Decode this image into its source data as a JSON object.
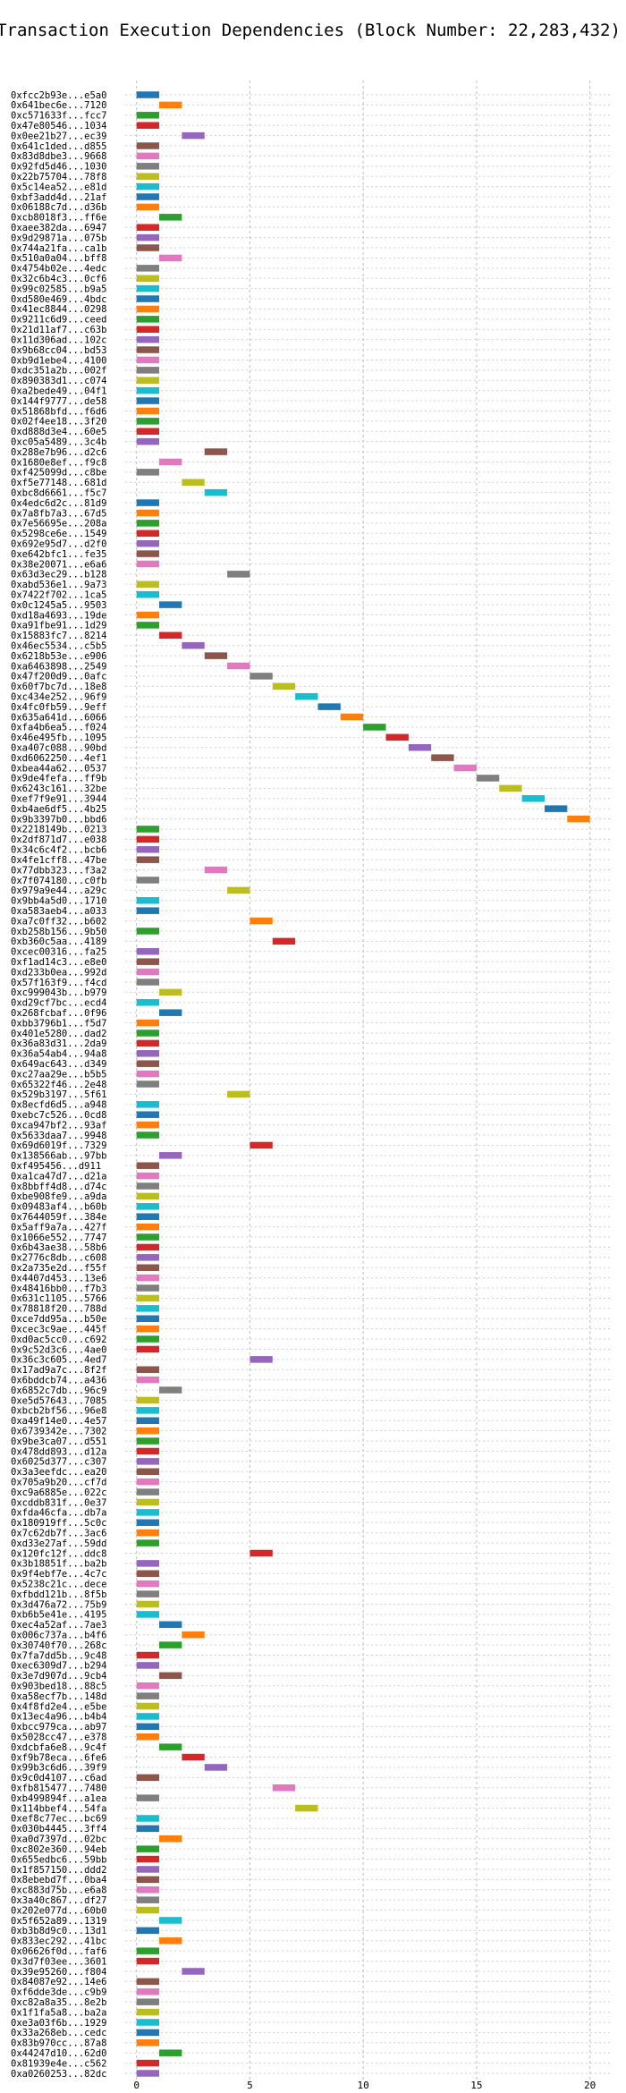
{
  "chart_data": {
    "type": "gantt",
    "title": "Transaction Execution Dependencies (Block Number: 22,283,432)",
    "xlim": [
      -0.5,
      21
    ],
    "xticks": [
      0,
      5,
      10,
      15,
      20
    ],
    "grid": true,
    "colors": [
      "#1f77b4",
      "#ff7f0e",
      "#2ca02c",
      "#d62728",
      "#9467bd",
      "#8c564b",
      "#e377c2",
      "#7f7f7f",
      "#bcbd22",
      "#17becf"
    ],
    "transactions": [
      {
        "label": "0xfcc2b93e...e5a0",
        "start": 0
      },
      {
        "label": "0x641bec6e...7120",
        "start": 1
      },
      {
        "label": "0xc571633f...fcc7",
        "start": 0
      },
      {
        "label": "0x47e80546...1034",
        "start": 0
      },
      {
        "label": "0x0ee21b27...ec39",
        "start": 2
      },
      {
        "label": "0x641c1ded...d855",
        "start": 0
      },
      {
        "label": "0x83d8dbe3...9668",
        "start": 0
      },
      {
        "label": "0x92fd5d46...1030",
        "start": 0
      },
      {
        "label": "0x22b75704...78f8",
        "start": 0
      },
      {
        "label": "0x5c14ea52...e81d",
        "start": 0
      },
      {
        "label": "0xbf3add4d...21af",
        "start": 0
      },
      {
        "label": "0x06188c7d...d36b",
        "start": 0
      },
      {
        "label": "0xcb8018f3...ff6e",
        "start": 1
      },
      {
        "label": "0xaee382da...6947",
        "start": 0
      },
      {
        "label": "0x9d29871a...075b",
        "start": 0
      },
      {
        "label": "0x744a21fa...ca1b",
        "start": 0
      },
      {
        "label": "0x510a0a04...bff8",
        "start": 1
      },
      {
        "label": "0x4754b02e...4edc",
        "start": 0
      },
      {
        "label": "0x32c6b4c3...0cf6",
        "start": 0
      },
      {
        "label": "0x99c02585...b9a5",
        "start": 0
      },
      {
        "label": "0xd580e469...4bdc",
        "start": 0
      },
      {
        "label": "0x41ec8844...0298",
        "start": 0
      },
      {
        "label": "0x9211c6d9...ceed",
        "start": 0
      },
      {
        "label": "0x21d11af7...c63b",
        "start": 0
      },
      {
        "label": "0x11d306ad...102c",
        "start": 0
      },
      {
        "label": "0x9b68cc04...bd53",
        "start": 0
      },
      {
        "label": "0xb9d1ebe4...4100",
        "start": 0
      },
      {
        "label": "0xdc351a2b...002f",
        "start": 0
      },
      {
        "label": "0x890383d1...c074",
        "start": 0
      },
      {
        "label": "0xa2bede49...04f1",
        "start": 0
      },
      {
        "label": "0x144f9777...de58",
        "start": 0
      },
      {
        "label": "0x51868bfd...f6d6",
        "start": 0
      },
      {
        "label": "0x02f4ee18...3f20",
        "start": 0
      },
      {
        "label": "0xd888d3e4...60e5",
        "start": 0
      },
      {
        "label": "0xc05a5489...3c4b",
        "start": 0
      },
      {
        "label": "0x288e7b96...d2c6",
        "start": 3
      },
      {
        "label": "0x1680e8ef...f9c8",
        "start": 1
      },
      {
        "label": "0xf425099d...c8be",
        "start": 0
      },
      {
        "label": "0xf5e77148...681d",
        "start": 2
      },
      {
        "label": "0xbc8d6661...f5c7",
        "start": 3
      },
      {
        "label": "0x4edc6d2c...81d9",
        "start": 0
      },
      {
        "label": "0x7a8fb7a3...67d5",
        "start": 0
      },
      {
        "label": "0x7e56695e...208a",
        "start": 0
      },
      {
        "label": "0x5298ce6e...1549",
        "start": 0
      },
      {
        "label": "0x692e95d7...d2f0",
        "start": 0
      },
      {
        "label": "0xe642bfc1...fe35",
        "start": 0
      },
      {
        "label": "0x38e20071...e6a6",
        "start": 0
      },
      {
        "label": "0x63d3ec29...b128",
        "start": 4
      },
      {
        "label": "0xabd536e1...9a73",
        "start": 0
      },
      {
        "label": "0x7422f702...1ca5",
        "start": 0
      },
      {
        "label": "0x0c1245a5...9503",
        "start": 1
      },
      {
        "label": "0xd18a4693...19de",
        "start": 0
      },
      {
        "label": "0xa91fbe91...1d29",
        "start": 0
      },
      {
        "label": "0x15883fc7...8214",
        "start": 1
      },
      {
        "label": "0x46ec5534...c5b5",
        "start": 2
      },
      {
        "label": "0x6218b53e...e906",
        "start": 3
      },
      {
        "label": "0xa6463898...2549",
        "start": 4
      },
      {
        "label": "0x47f200d9...0afc",
        "start": 5
      },
      {
        "label": "0x60f7bc7d...18e8",
        "start": 6
      },
      {
        "label": "0xc434e252...96f9",
        "start": 7
      },
      {
        "label": "0x4fc0fb59...9eff",
        "start": 8
      },
      {
        "label": "0x635a641d...6066",
        "start": 9
      },
      {
        "label": "0xfa4b6ea5...f024",
        "start": 10
      },
      {
        "label": "0x46e495fb...1095",
        "start": 11
      },
      {
        "label": "0xa407c088...90bd",
        "start": 12
      },
      {
        "label": "0xd6062250...4ef1",
        "start": 13
      },
      {
        "label": "0xbea44a62...0537",
        "start": 14
      },
      {
        "label": "0x9de4fefa...ff9b",
        "start": 15
      },
      {
        "label": "0x6243c161...32be",
        "start": 16
      },
      {
        "label": "0xef7f9e91...3944",
        "start": 17
      },
      {
        "label": "0xb4ae6df5...4b25",
        "start": 18
      },
      {
        "label": "0x9b3397b0...bbd6",
        "start": 19
      },
      {
        "label": "0x2218149b...0213",
        "start": 0
      },
      {
        "label": "0x2df871d7...e038",
        "start": 0
      },
      {
        "label": "0x34c6c4f2...bcb6",
        "start": 0
      },
      {
        "label": "0x4fe1cff8...47be",
        "start": 0
      },
      {
        "label": "0x77dbb323...f3a2",
        "start": 3
      },
      {
        "label": "0x7f074180...c0fb",
        "start": 0
      },
      {
        "label": "0x979a9e44...a29c",
        "start": 4
      },
      {
        "label": "0x9bb4a5d0...1710",
        "start": 0
      },
      {
        "label": "0xa583aeb4...a033",
        "start": 0
      },
      {
        "label": "0xa7c0ff32...b602",
        "start": 5
      },
      {
        "label": "0xb258b156...9b50",
        "start": 0
      },
      {
        "label": "0xb360c5aa...4189",
        "start": 6
      },
      {
        "label": "0xcec00316...fa25",
        "start": 0
      },
      {
        "label": "0xf1ad14c3...e8e0",
        "start": 0
      },
      {
        "label": "0xd233b0ea...992d",
        "start": 0
      },
      {
        "label": "0x57f163f9...f4cd",
        "start": 0
      },
      {
        "label": "0xc999043b...b979",
        "start": 1
      },
      {
        "label": "0xd29cf7bc...ecd4",
        "start": 0
      },
      {
        "label": "0x268fcbaf...0f96",
        "start": 1
      },
      {
        "label": "0xbb3796b1...f5d7",
        "start": 0
      },
      {
        "label": "0x401e5280...dad2",
        "start": 0
      },
      {
        "label": "0x36a83d31...2da9",
        "start": 0
      },
      {
        "label": "0x36a54ab4...94a8",
        "start": 0
      },
      {
        "label": "0x649ac643...d349",
        "start": 0
      },
      {
        "label": "0xc27aa29e...b5b5",
        "start": 0
      },
      {
        "label": "0x65322f46...2e48",
        "start": 0
      },
      {
        "label": "0x529b3197...5f61",
        "start": 4
      },
      {
        "label": "0x8ecfd6d5...a948",
        "start": 0
      },
      {
        "label": "0xebc7c526...0cd8",
        "start": 0
      },
      {
        "label": "0xca947bf2...93af",
        "start": 0
      },
      {
        "label": "0x5633daa7...9948",
        "start": 0
      },
      {
        "label": "0x69d6019f...7329",
        "start": 5
      },
      {
        "label": "0x138566ab...97bb",
        "start": 1
      },
      {
        "label": "0xf495456...d911",
        "start": 0
      },
      {
        "label": "0xa1ca47d7...d21a",
        "start": 0
      },
      {
        "label": "0x8bbff4d8...d74c",
        "start": 0
      },
      {
        "label": "0xbe908fe9...a9da",
        "start": 0
      },
      {
        "label": "0x09483af4...b60b",
        "start": 0
      },
      {
        "label": "0x7644059f...384e",
        "start": 0
      },
      {
        "label": "0x5aff9a7a...427f",
        "start": 0
      },
      {
        "label": "0x1066e552...7747",
        "start": 0
      },
      {
        "label": "0x6b43ae38...58b6",
        "start": 0
      },
      {
        "label": "0x2776c8db...c608",
        "start": 0
      },
      {
        "label": "0x2a735e2d...f55f",
        "start": 0
      },
      {
        "label": "0x4407d453...13e6",
        "start": 0
      },
      {
        "label": "0x48416bb0...f7b3",
        "start": 0
      },
      {
        "label": "0x631c1105...5766",
        "start": 0
      },
      {
        "label": "0x78818f20...788d",
        "start": 0
      },
      {
        "label": "0xce7dd95a...b50e",
        "start": 0
      },
      {
        "label": "0xcec3c9ae...445f",
        "start": 0
      },
      {
        "label": "0xd0ac5cc0...c692",
        "start": 0
      },
      {
        "label": "0x9c52d3c6...4ae0",
        "start": 0
      },
      {
        "label": "0x36c3c605...4ed7",
        "start": 5
      },
      {
        "label": "0x17ad9a7c...8f2f",
        "start": 0
      },
      {
        "label": "0x6bddcb74...a436",
        "start": 0
      },
      {
        "label": "0x6852c7db...96c9",
        "start": 1
      },
      {
        "label": "0xe5d57643...7085",
        "start": 0
      },
      {
        "label": "0xbcb2bf56...96e8",
        "start": 0
      },
      {
        "label": "0xa49f14e0...4e57",
        "start": 0
      },
      {
        "label": "0x6739342e...7302",
        "start": 0
      },
      {
        "label": "0x9be3ca07...d551",
        "start": 0
      },
      {
        "label": "0x478dd893...d12a",
        "start": 0
      },
      {
        "label": "0x6025d377...c307",
        "start": 0
      },
      {
        "label": "0x3a3eefdc...ea20",
        "start": 0
      },
      {
        "label": "0x705a9b20...cf7d",
        "start": 0
      },
      {
        "label": "0xc9a6885e...022c",
        "start": 0
      },
      {
        "label": "0xcddb831f...0e37",
        "start": 0
      },
      {
        "label": "0xfda46cfa...db7a",
        "start": 0
      },
      {
        "label": "0x180919ff...5c0c",
        "start": 0
      },
      {
        "label": "0x7c62db7f...3ac6",
        "start": 0
      },
      {
        "label": "0xd33e27af...59dd",
        "start": 0
      },
      {
        "label": "0x120fc12f...ddc8",
        "start": 5
      },
      {
        "label": "0x3b18851f...ba2b",
        "start": 0
      },
      {
        "label": "0x9f4ebf7e...4c7c",
        "start": 0
      },
      {
        "label": "0x5238c21c...dece",
        "start": 0
      },
      {
        "label": "0xfbdd121b...8f5b",
        "start": 0
      },
      {
        "label": "0x3d476a72...75b9",
        "start": 0
      },
      {
        "label": "0xb6b5e41e...4195",
        "start": 0
      },
      {
        "label": "0xec4a52af...7ae3",
        "start": 1
      },
      {
        "label": "0x006c737a...b4f6",
        "start": 2
      },
      {
        "label": "0x30740f70...268c",
        "start": 1
      },
      {
        "label": "0x7fa7dd5b...9c48",
        "start": 0
      },
      {
        "label": "0xec6309d7...b294",
        "start": 0
      },
      {
        "label": "0x3e7d907d...9cb4",
        "start": 1
      },
      {
        "label": "0x903bed18...88c5",
        "start": 0
      },
      {
        "label": "0xa58ecf7b...148d",
        "start": 0
      },
      {
        "label": "0x4f8fd2e4...e5be",
        "start": 0
      },
      {
        "label": "0x13ec4a96...b4b4",
        "start": 0
      },
      {
        "label": "0xbcc979ca...ab97",
        "start": 0
      },
      {
        "label": "0x5028cc47...e378",
        "start": 0
      },
      {
        "label": "0xdcbfa6e8...9c4f",
        "start": 1
      },
      {
        "label": "0xf9b78eca...6fe6",
        "start": 2
      },
      {
        "label": "0x99b3c6d6...39f9",
        "start": 3
      },
      {
        "label": "0x9c0d4107...c6ad",
        "start": 0
      },
      {
        "label": "0xfb815477...7480",
        "start": 6
      },
      {
        "label": "0xb499894f...a1ea",
        "start": 0
      },
      {
        "label": "0x114bbef4...54fa",
        "start": 7
      },
      {
        "label": "0xef8c77ec...bc69",
        "start": 0
      },
      {
        "label": "0x030b4445...3ff4",
        "start": 0
      },
      {
        "label": "0xa0d7397d...02bc",
        "start": 1
      },
      {
        "label": "0xc802e360...94eb",
        "start": 0
      },
      {
        "label": "0x655edbc6...59bb",
        "start": 0
      },
      {
        "label": "0x1f857150...ddd2",
        "start": 0
      },
      {
        "label": "0x8ebebd7f...0ba4",
        "start": 0
      },
      {
        "label": "0xc883d75b...e6a8",
        "start": 0
      },
      {
        "label": "0x3a40c867...df27",
        "start": 0
      },
      {
        "label": "0x202e077d...60b0",
        "start": 0
      },
      {
        "label": "0x5f652a89...1319",
        "start": 1
      },
      {
        "label": "0xb3b8d9c0...13d1",
        "start": 0
      },
      {
        "label": "0x833ec292...41bc",
        "start": 1
      },
      {
        "label": "0x06626f0d...faf6",
        "start": 0
      },
      {
        "label": "0x3d7f03ee...3601",
        "start": 0
      },
      {
        "label": "0x39e95260...f804",
        "start": 2
      },
      {
        "label": "0x84087e92...14e6",
        "start": 0
      },
      {
        "label": "0xf6dde3de...c9b9",
        "start": 0
      },
      {
        "label": "0xc82a8a35...8e2b",
        "start": 0
      },
      {
        "label": "0x1f1fa5a8...ba2a",
        "start": 0
      },
      {
        "label": "0xe3a03f6b...1929",
        "start": 0
      },
      {
        "label": "0x33a268eb...cedc",
        "start": 0
      },
      {
        "label": "0x83b970cc...87a8",
        "start": 0
      },
      {
        "label": "0x44247d10...62d0",
        "start": 1
      },
      {
        "label": "0x81939e4e...c562",
        "start": 0
      },
      {
        "label": "0xa0260253...82dc",
        "start": 0
      }
    ]
  }
}
